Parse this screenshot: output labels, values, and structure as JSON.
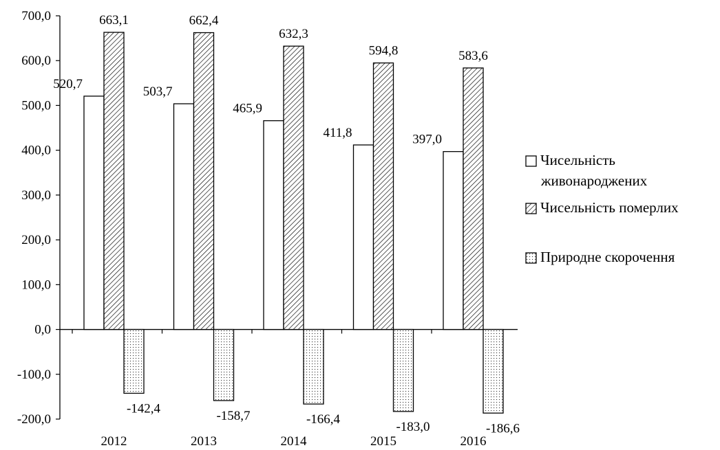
{
  "chart_data": {
    "type": "bar",
    "categories": [
      "2012",
      "2013",
      "2014",
      "2015",
      "2016"
    ],
    "series": [
      {
        "name": "Чисельність живонароджених",
        "values": [
          520.7,
          503.7,
          465.9,
          411.8,
          397.0
        ],
        "labels": [
          "520,7",
          "503,7",
          "465,9",
          "411,8",
          "397,0"
        ],
        "fill": "plain",
        "legend_lines": [
          "Чисельність",
          "живонароджених"
        ]
      },
      {
        "name": "Чисельність померлих",
        "values": [
          663.1,
          662.4,
          632.3,
          594.8,
          583.6
        ],
        "labels": [
          "663,1",
          "662,4",
          "632,3",
          "594,8",
          "583,6"
        ],
        "fill": "hatched",
        "legend_lines": [
          "Чисельність померлих"
        ]
      },
      {
        "name": "Природне скорочення",
        "values": [
          -142.4,
          -158.7,
          -166.4,
          -183.0,
          -186.6
        ],
        "labels": [
          "-142,4",
          "-158,7",
          "-166,4",
          "-183,0",
          "-186,6"
        ],
        "fill": "dotted",
        "legend_lines": [
          "Природне скорочення"
        ]
      }
    ],
    "ylim": [
      -200,
      700
    ],
    "yticks": [
      -200,
      -100,
      0,
      100,
      200,
      300,
      400,
      500,
      600,
      700
    ],
    "ytick_labels": [
      "-200,0",
      "-100,0",
      "0,0",
      "100,0",
      "200,0",
      "300,0",
      "400,0",
      "500,0",
      "600,0",
      "700,0"
    ],
    "grid": false,
    "legend_position": "right",
    "colors": {
      "bar_outline": "#000000",
      "bar_fill": "#ffffff",
      "hatch": "#000000"
    }
  }
}
